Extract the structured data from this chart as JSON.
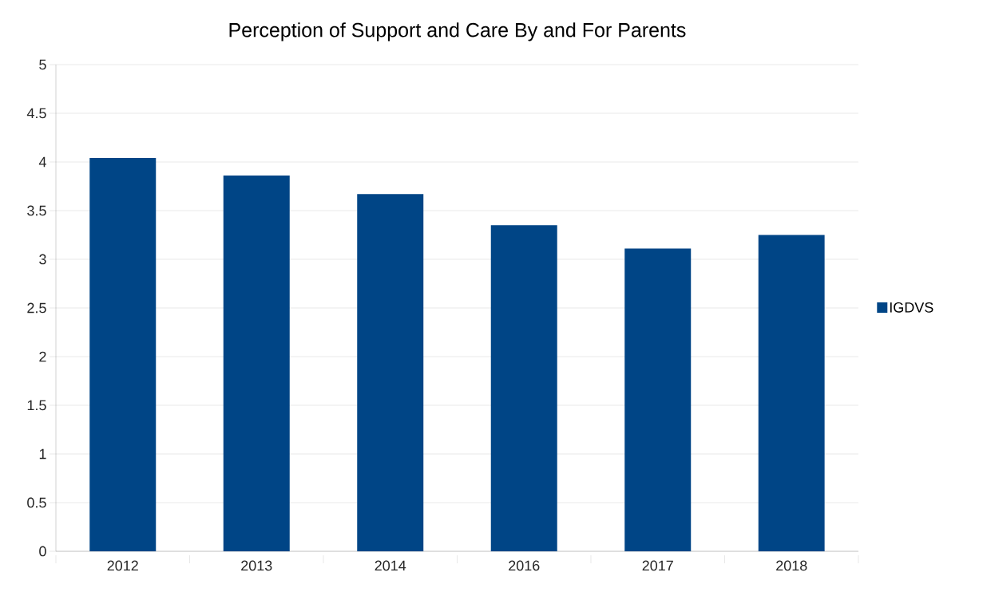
{
  "chart_data": {
    "type": "bar",
    "title": "Perception of Support and Care By and For Parents",
    "categories": [
      "2012",
      "2013",
      "2014",
      "2016",
      "2017",
      "2018"
    ],
    "series": [
      {
        "name": "IGDVS",
        "color": "#004586",
        "values": [
          4.04,
          3.86,
          3.67,
          3.35,
          3.11,
          3.25
        ]
      }
    ],
    "ylim": [
      0,
      5
    ],
    "yticks": [
      0,
      0.5,
      1,
      1.5,
      2,
      2.5,
      3,
      3.5,
      4,
      4.5,
      5
    ],
    "grid": "y",
    "legend": "right"
  }
}
